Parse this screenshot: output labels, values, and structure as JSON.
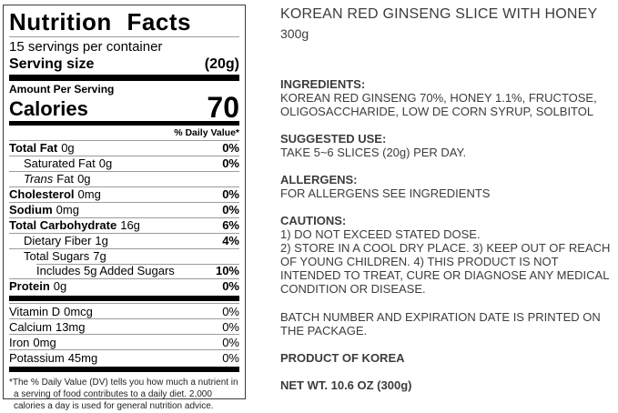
{
  "nutrition_label": {
    "title": "Nutrition Facts",
    "servings_per_container": "15 servings per container",
    "serving_size": {
      "label": "Serving size",
      "value": "(20g)"
    },
    "amount_per_serving": "Amount Per Serving",
    "calories": {
      "label": "Calories",
      "value": "70"
    },
    "daily_value_header": "% Daily Value*",
    "nutrients": [
      {
        "label": "Total Fat",
        "amount": "0g",
        "dv": "0%"
      },
      {
        "label": "Saturated Fat",
        "amount": "0g",
        "dv": "0%"
      },
      {
        "label_italic": "Trans",
        "label": "Fat",
        "amount": "0g",
        "dv": ""
      },
      {
        "label": "Cholesterol",
        "amount": "0mg",
        "dv": "0%"
      },
      {
        "label": "Sodium",
        "amount": "0mg",
        "dv": "0%"
      },
      {
        "label": "Total Carbohydrate",
        "amount": "16g",
        "dv": "6%"
      },
      {
        "label": "Dietary Fiber",
        "amount": "1g",
        "dv": "4%"
      },
      {
        "label": "Total Sugars",
        "amount": "7g",
        "dv": ""
      },
      {
        "label": "Includes 5g Added Sugars",
        "amount": "",
        "dv": "10%"
      },
      {
        "label": "Protein",
        "amount": "0g",
        "dv": "0%"
      }
    ],
    "vitamins": [
      {
        "label": "Vitamin D",
        "amount": "0mcg",
        "dv": "0%"
      },
      {
        "label": "Calcium",
        "amount": "13mg",
        "dv": "0%"
      },
      {
        "label": "Iron",
        "amount": "0mg",
        "dv": "0%"
      },
      {
        "label": "Potassium",
        "amount": "45mg",
        "dv": "0%"
      }
    ],
    "footnote": "*The % Daily Value (DV) tells you how much a nutrient in a serving of food contributes to a daily diet. 2,000 calories a day is used for general nutrition advice."
  },
  "product_info": {
    "title": "KOREAN RED GINSENG SLICE WITH HONEY",
    "weight": "300g",
    "sections": [
      {
        "heading": "INGREDIENTS:",
        "body": "KOREAN RED GINSENG 70%, HONEY 1.1%, FRUCTOSE, OLIGOSACCHARIDE, LOW DE CORN SYRUP, SOLBITOL"
      },
      {
        "heading": "SUGGESTED USE:",
        "body": "TAKE 5~6 SLICES (20g) PER DAY."
      },
      {
        "heading": "ALLERGENS:",
        "body": "FOR ALLERGENS SEE INGREDIENTS"
      },
      {
        "heading": "CAUTIONS:",
        "body": "1) DO NOT EXCEED STATED DOSE.\n2) STORE IN A COOL DRY PLACE. 3) KEEP OUT OF REACH OF YOUNG CHILDREN. 4) THIS PRODUCT IS NOT INTENDED TO TREAT, CURE OR DIAGNOSE ANY MEDICAL CONDITION OR DISEASE."
      }
    ],
    "batch_note": "BATCH NUMBER AND EXPIRATION DATE IS PRINTED ON THE PACKAGE.",
    "origin": "PRODUCT OF KOREA",
    "net_weight": "NET WT. 10.6 OZ (300g)"
  },
  "colors": {
    "label_text": "#000000",
    "body_text": "#3c3c3c",
    "hairline": "#9b9b9b",
    "bar": "#000000",
    "background": "#ffffff"
  }
}
